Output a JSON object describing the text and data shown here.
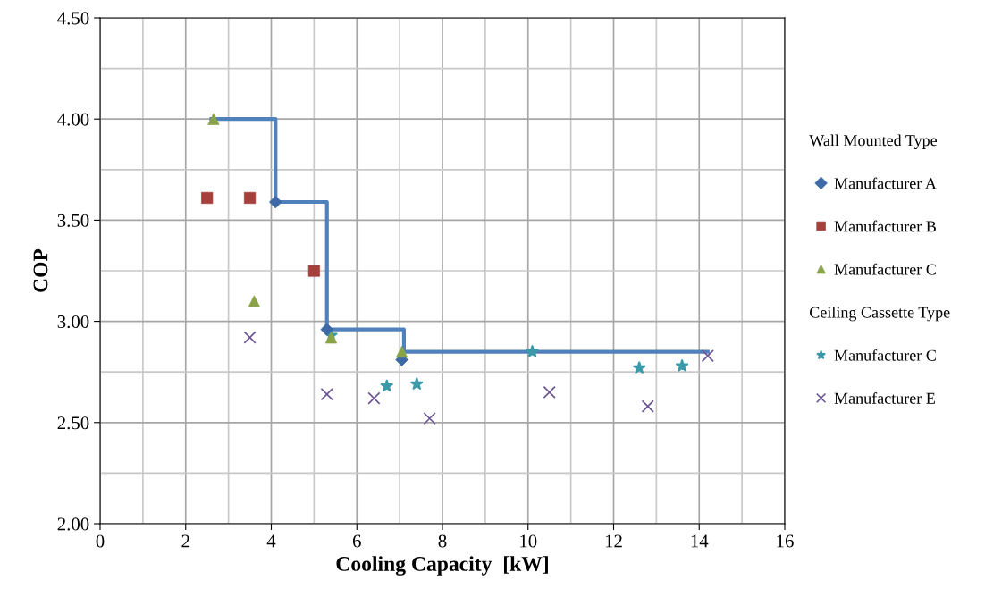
{
  "chart_data": {
    "type": "scatter",
    "xlabel": "Cooling Capacity  [kW]",
    "ylabel": "COP",
    "annotations": [
      "Wall Mounted Type",
      "Ceiling Cassette Type"
    ],
    "xlim": [
      0,
      16
    ],
    "xticks": [
      0,
      2,
      4,
      6,
      8,
      10,
      12,
      14,
      16
    ],
    "ylim": [
      2.0,
      4.5
    ],
    "yticks": [
      {
        "value": 2.0,
        "label": "2.00"
      },
      {
        "value": 2.5,
        "label": "2.50"
      },
      {
        "value": 3.0,
        "label": "3.00"
      },
      {
        "value": 3.5,
        "label": "3.50"
      },
      {
        "value": 4.0,
        "label": "4.00"
      },
      {
        "value": 4.5,
        "label": "4.50"
      }
    ],
    "grid": true,
    "legend": "right",
    "series": [
      {
        "type": "step",
        "color": "#4f81bd",
        "marker": "none",
        "line_style": "solid",
        "x": [
          2.6,
          4.1,
          5.3,
          7.1,
          14.2
        ],
        "values": [
          4.0,
          3.59,
          2.96,
          2.85,
          2.85
        ]
      },
      {
        "name": "Manufacturer A",
        "color": "#3d6aa6",
        "marker": "diamond",
        "x": [
          4.1,
          5.3,
          7.05
        ],
        "values": [
          3.59,
          2.96,
          2.81
        ]
      },
      {
        "name": "Manufacturer B",
        "color": "#a5403c",
        "marker": "square",
        "x": [
          2.5,
          3.5,
          5.0
        ],
        "values": [
          3.61,
          3.61,
          3.25
        ]
      },
      {
        "name": "Manufacturer C",
        "color": "#8aa346",
        "marker": "triangle",
        "x": [
          2.65,
          3.6,
          5.4,
          7.05
        ],
        "values": [
          4.0,
          3.1,
          2.92,
          2.85
        ]
      },
      {
        "name": "Manufacturer C",
        "color": "#3a9aa9",
        "marker": "star",
        "x": [
          5.4,
          6.7,
          7.4,
          10.1,
          12.6,
          13.6
        ],
        "values": [
          2.93,
          2.68,
          2.69,
          2.85,
          2.77,
          2.78
        ]
      },
      {
        "name": "Manufacturer E",
        "color": "#6b5594",
        "marker": "cross",
        "x": [
          3.5,
          5.3,
          6.4,
          7.7,
          10.5,
          12.8,
          14.2
        ],
        "values": [
          2.92,
          2.64,
          2.62,
          2.52,
          2.65,
          2.58,
          2.83
        ]
      }
    ]
  }
}
